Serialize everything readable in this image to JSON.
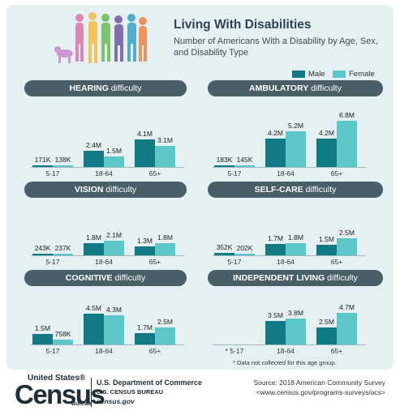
{
  "title": "Living With Disabilities",
  "subtitle": "Number of Americans With a Disability by Age, Sex, and Disability Type",
  "legend": {
    "male": "Male",
    "female": "Female"
  },
  "colors": {
    "male": "#117a85",
    "female": "#5cc7c9",
    "pill": "#4a5e68"
  },
  "panel_titles": [
    {
      "type": "HEARING",
      "suffix": "difficulty"
    },
    {
      "type": "AMBULATORY",
      "suffix": "difficulty"
    },
    {
      "type": "VISION",
      "suffix": "difficulty"
    },
    {
      "type": "SELF-CARE",
      "suffix": "difficulty"
    },
    {
      "type": "COGNITIVE",
      "suffix": "difficulty"
    },
    {
      "type": "INDEPENDENT LIVING",
      "suffix": "difficulty"
    }
  ],
  "note": "* Data not collected for this age group.",
  "footer": {
    "logo_top": "United States®",
    "logo_main": "Census",
    "logo_bottom": "Bureau",
    "dept_line1": "U.S. Department of Commerce",
    "dept_line2": "U.S. CENSUS BUREAU",
    "dept_line3": "census.gov",
    "source_line1": "Source: 2018 American Community Survey",
    "source_line2": "<www.census.gov/programs-surveys/acs>"
  },
  "chart_data": [
    {
      "type": "bar",
      "title": "HEARING difficulty",
      "categories": [
        "5-17",
        "18-64",
        "65+"
      ],
      "series": [
        {
          "name": "Male",
          "values": [
            171000,
            2400000,
            4100000
          ],
          "labels": [
            "171K",
            "2.4M",
            "4.1M"
          ]
        },
        {
          "name": "Female",
          "values": [
            138000,
            1500000,
            3100000
          ],
          "labels": [
            "138K",
            "1.5M",
            "3.1M"
          ]
        }
      ]
    },
    {
      "type": "bar",
      "title": "AMBULATORY difficulty",
      "categories": [
        "5-17",
        "18-64",
        "65+"
      ],
      "series": [
        {
          "name": "Male",
          "values": [
            183000,
            4200000,
            4200000
          ],
          "labels": [
            "183K",
            "4.2M",
            "4.2M"
          ]
        },
        {
          "name": "Female",
          "values": [
            145000,
            5200000,
            6800000
          ],
          "labels": [
            "145K",
            "5.2M",
            "6.8M"
          ]
        }
      ]
    },
    {
      "type": "bar",
      "title": "VISION difficulty",
      "categories": [
        "5-17",
        "18-64",
        "65+"
      ],
      "series": [
        {
          "name": "Male",
          "values": [
            243000,
            1800000,
            1300000
          ],
          "labels": [
            "243K",
            "1.8M",
            "1.3M"
          ]
        },
        {
          "name": "Female",
          "values": [
            237000,
            2100000,
            1800000
          ],
          "labels": [
            "237K",
            "2.1M",
            "1.8M"
          ]
        }
      ]
    },
    {
      "type": "bar",
      "title": "SELF-CARE difficulty",
      "categories": [
        "5-17",
        "18-64",
        "65+"
      ],
      "series": [
        {
          "name": "Male",
          "values": [
            352000,
            1700000,
            1500000
          ],
          "labels": [
            "352K",
            "1.7M",
            "1.5M"
          ]
        },
        {
          "name": "Female",
          "values": [
            202000,
            1800000,
            2500000
          ],
          "labels": [
            "202K",
            "1.8M",
            "2.5M"
          ]
        }
      ]
    },
    {
      "type": "bar",
      "title": "COGNITIVE difficulty",
      "categories": [
        "5-17",
        "18-64",
        "65+"
      ],
      "series": [
        {
          "name": "Male",
          "values": [
            1500000,
            4500000,
            1700000
          ],
          "labels": [
            "1.5M",
            "4.5M",
            "1.7M"
          ]
        },
        {
          "name": "Female",
          "values": [
            758000,
            4300000,
            2500000
          ],
          "labels": [
            "758K",
            "4.3M",
            "2.5M"
          ]
        }
      ]
    },
    {
      "type": "bar",
      "title": "INDEPENDENT LIVING difficulty",
      "categories": [
        "* 5-17",
        "18-64",
        "65+"
      ],
      "series": [
        {
          "name": "Male",
          "values": [
            null,
            3500000,
            2500000
          ],
          "labels": [
            "",
            "3.5M",
            "2.5M"
          ]
        },
        {
          "name": "Female",
          "values": [
            null,
            3800000,
            4700000
          ],
          "labels": [
            "",
            "3.8M",
            "4.7M"
          ]
        }
      ]
    }
  ]
}
